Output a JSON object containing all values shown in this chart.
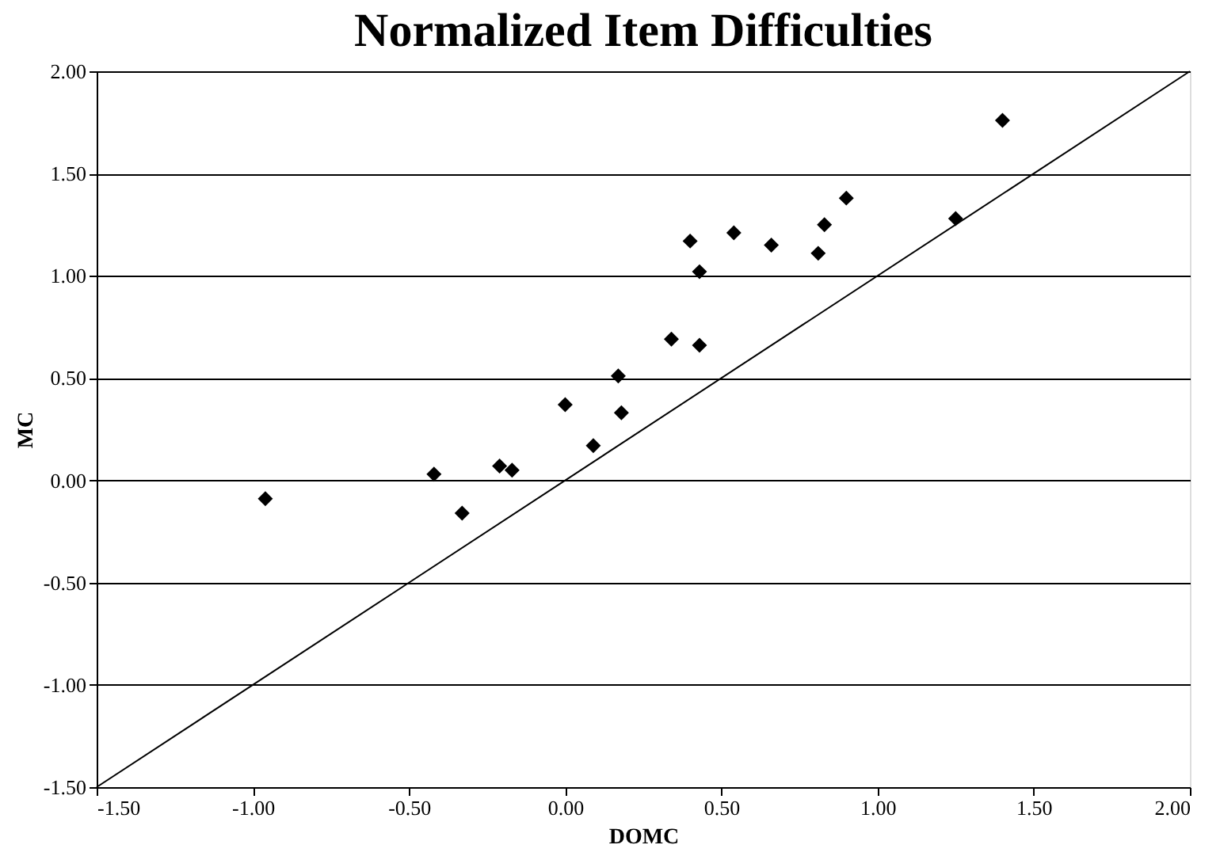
{
  "chart_data": {
    "type": "scatter",
    "title": "Normalized Item Difficulties",
    "xlabel": "DOMC",
    "ylabel": "MC",
    "series": [
      {
        "color": "#000000",
        "marker": "diamond",
        "x": [
          -0.96,
          -0.42,
          -0.33,
          -0.21,
          -0.17,
          0.0,
          0.09,
          0.17,
          0.18,
          0.34,
          0.43,
          0.4,
          0.43,
          0.54,
          0.66,
          0.81,
          0.83,
          0.9,
          1.25,
          1.4
        ],
        "values": [
          -0.09,
          0.03,
          -0.16,
          0.07,
          0.05,
          0.37,
          0.17,
          0.51,
          0.33,
          0.69,
          0.66,
          1.17,
          1.02,
          1.21,
          1.15,
          1.11,
          1.25,
          1.38,
          1.28,
          1.76
        ]
      },
      {
        "type": "line",
        "color": "#000000",
        "marker": "none",
        "line_style": "solid",
        "x": [
          -1.5,
          2.0
        ],
        "values": [
          -1.5,
          2.0
        ]
      }
    ],
    "xlim": [
      -1.5,
      2.0
    ],
    "ylim": [
      -1.5,
      2.0
    ],
    "xticks": [
      {
        "value": -1.5,
        "label": "-1.50"
      },
      {
        "value": -1.0,
        "label": "-1.00"
      },
      {
        "value": -0.5,
        "label": "-0.50"
      },
      {
        "value": 0.0,
        "label": "0.00"
      },
      {
        "value": 0.5,
        "label": "0.50"
      },
      {
        "value": 1.0,
        "label": "1.00"
      },
      {
        "value": 1.5,
        "label": "1.50"
      },
      {
        "value": 2.0,
        "label": "2.00"
      }
    ],
    "yticks": [
      {
        "value": -1.5,
        "label": "-1.50"
      },
      {
        "value": -1.0,
        "label": "-1.00"
      },
      {
        "value": -0.5,
        "label": "-0.50"
      },
      {
        "value": 0.0,
        "label": "0.00"
      },
      {
        "value": 0.5,
        "label": "0.50"
      },
      {
        "value": 1.0,
        "label": "1.00"
      },
      {
        "value": 1.5,
        "label": "1.50"
      },
      {
        "value": 2.0,
        "label": "2.00"
      }
    ],
    "grid": "y"
  }
}
